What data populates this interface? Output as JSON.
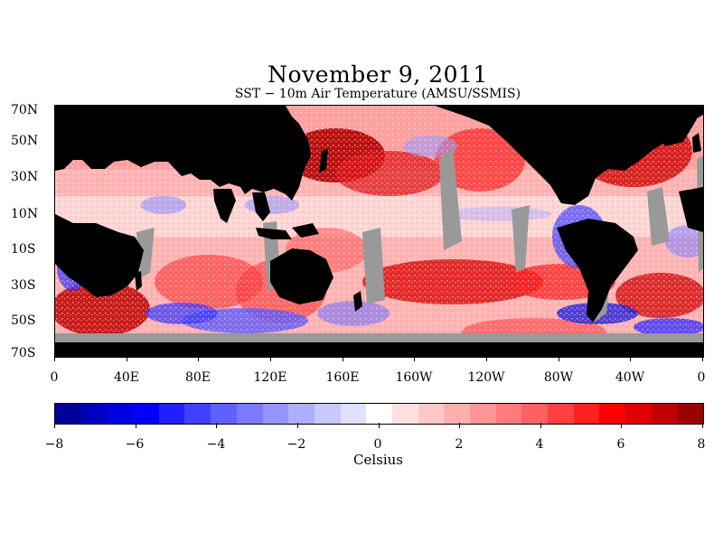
{
  "title": "November 9, 2011",
  "subtitle": "SST − 10m Air Temperature (AMSU/SSMIS)",
  "map": {
    "lat_labels": [
      "70N",
      "50N",
      "30N",
      "10N",
      "10S",
      "30S",
      "50S",
      "70S"
    ],
    "lon_labels": [
      "0",
      "40E",
      "80E",
      "120E",
      "160E",
      "160W",
      "120W",
      "80W",
      "40W",
      "0"
    ],
    "land_color": "#000000",
    "ice_missing_color": "#999999"
  },
  "colorbar": {
    "tick_labels": [
      "−8",
      "−6",
      "−4",
      "−2",
      "0",
      "2",
      "4",
      "6",
      "8"
    ],
    "units": "Celsius",
    "range": [
      -8,
      8
    ],
    "colors": [
      "#00009a",
      "#0000c0",
      "#0000e0",
      "#0000ff",
      "#2020ff",
      "#4040ff",
      "#6060ff",
      "#7a7aff",
      "#9494ff",
      "#aeaeff",
      "#c8c8ff",
      "#e0e0ff",
      "#ffffff",
      "#ffe0e0",
      "#ffc8c8",
      "#ffaeae",
      "#ff9494",
      "#ff7a7a",
      "#ff6060",
      "#ff4040",
      "#ff2020",
      "#ff0000",
      "#e00000",
      "#c00000",
      "#9a0000"
    ]
  }
}
